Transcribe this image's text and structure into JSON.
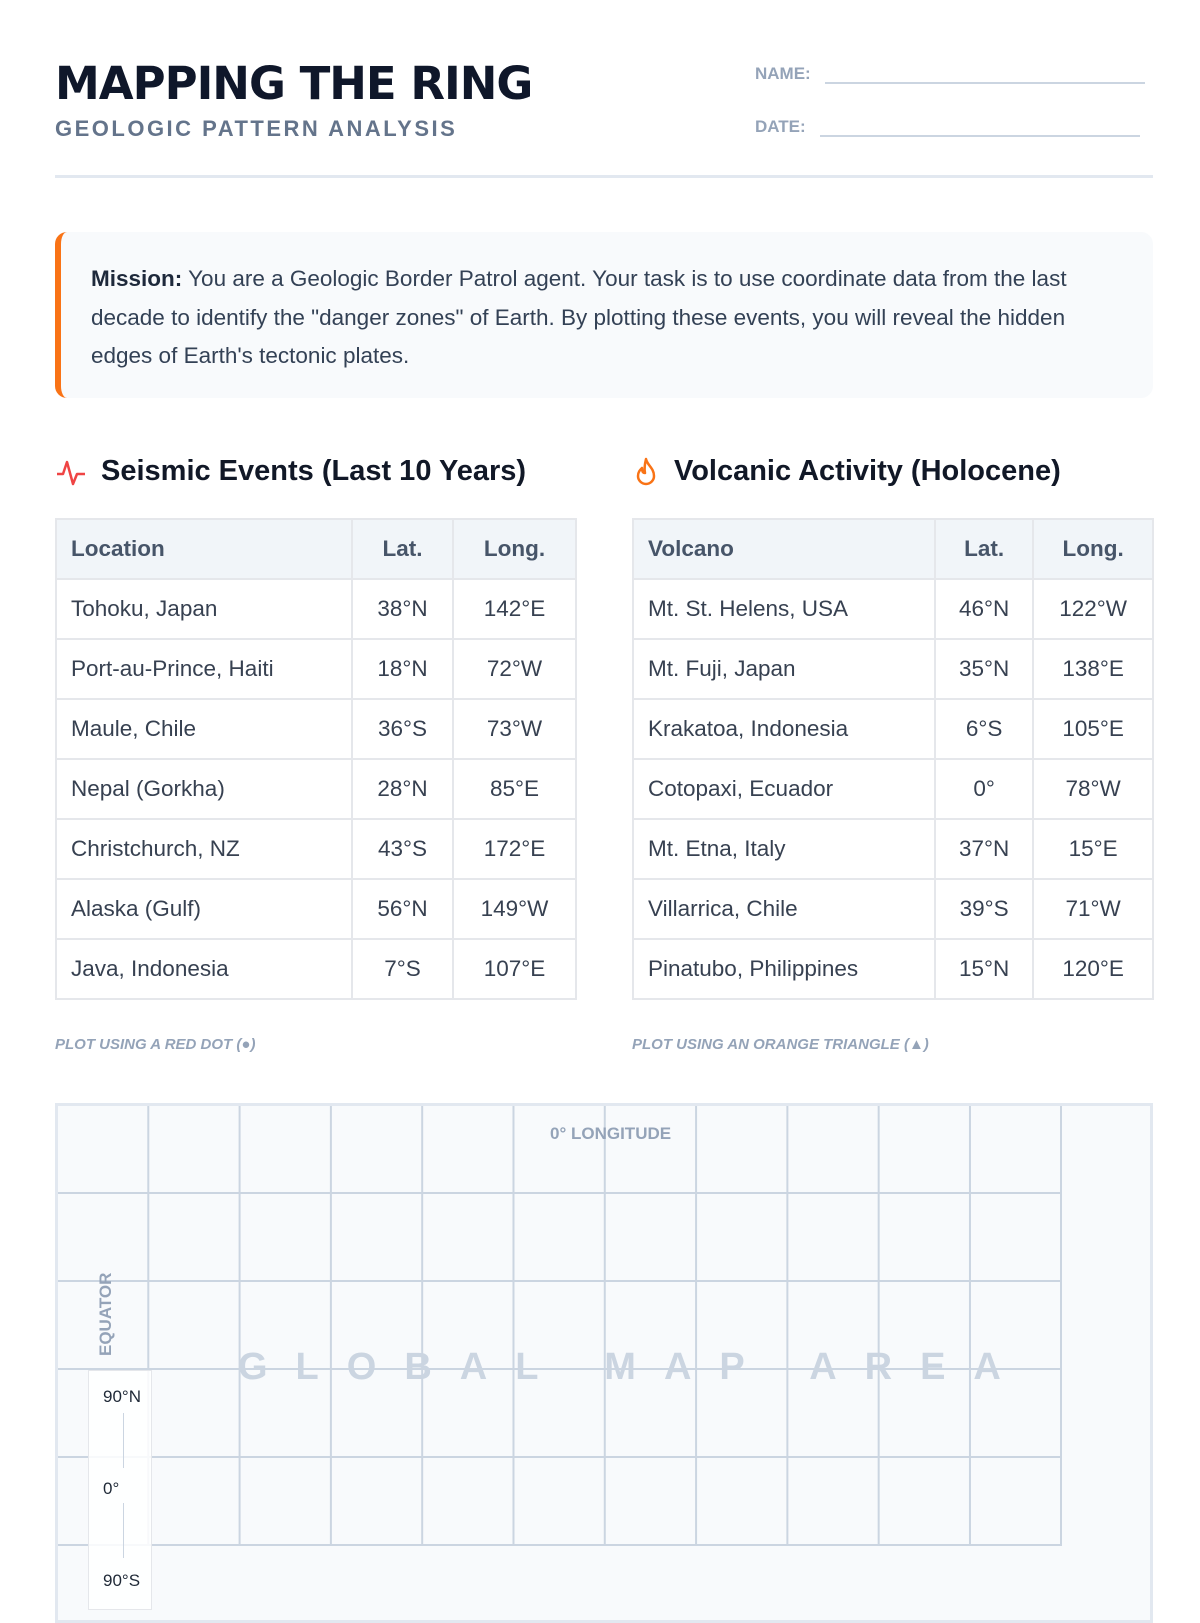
{
  "header": {
    "title": "MAPPING THE RING",
    "subtitle": "GEOLOGIC PATTERN ANALYSIS",
    "name_label": "NAME:",
    "date_label": "DATE:"
  },
  "mission": {
    "label": "Mission:",
    "text": " You are a Geologic Border Patrol agent. Your task is to use coordinate data from the last decade to identify the \"danger zones\" of Earth. By plotting these events, you will reveal the hidden edges of Earth's tectonic plates."
  },
  "seismic": {
    "title": "Seismic Events (Last 10 Years)",
    "icon": "seismic-wave-icon",
    "color": "#ef4444",
    "headers": [
      "Location",
      "Lat.",
      "Long."
    ],
    "rows": [
      [
        "Tohoku, Japan",
        "38°N",
        "142°E"
      ],
      [
        "Port-au-Prince, Haiti",
        "18°N",
        "72°W"
      ],
      [
        "Maule, Chile",
        "36°S",
        "73°W"
      ],
      [
        "Nepal (Gorkha)",
        "28°N",
        "85°E"
      ],
      [
        "Christchurch, NZ",
        "43°S",
        "172°E"
      ],
      [
        "Alaska (Gulf)",
        "56°N",
        "149°W"
      ],
      [
        "Java, Indonesia",
        "7°S",
        "107°E"
      ]
    ],
    "note": "PLOT USING A RED DOT (●)"
  },
  "volcanic": {
    "title": "Volcanic Activity (Holocene)",
    "icon": "flame-icon",
    "color": "#f97316",
    "headers": [
      "Volcano",
      "Lat.",
      "Long."
    ],
    "rows": [
      [
        "Mt. St. Helens, USA",
        "46°N",
        "122°W"
      ],
      [
        "Mt. Fuji, Japan",
        "35°N",
        "138°E"
      ],
      [
        "Krakatoa, Indonesia",
        "6°S",
        "105°E"
      ],
      [
        "Cotopaxi, Ecuador",
        "0°",
        "78°W"
      ],
      [
        "Mt. Etna, Italy",
        "37°N",
        "15°E"
      ],
      [
        "Villarrica, Chile",
        "39°S",
        "71°W"
      ],
      [
        "Pinatubo, Philippines",
        "15°N",
        "120°E"
      ]
    ],
    "note": "PLOT USING AN ORANGE TRIANGLE (▲)"
  },
  "map": {
    "lon_label": "0° LONGITUDE",
    "eq_label": "EQUATOR",
    "watermark": "GLOBAL MAP AREA",
    "scale": [
      "90°N",
      "0°",
      "90°S"
    ]
  }
}
